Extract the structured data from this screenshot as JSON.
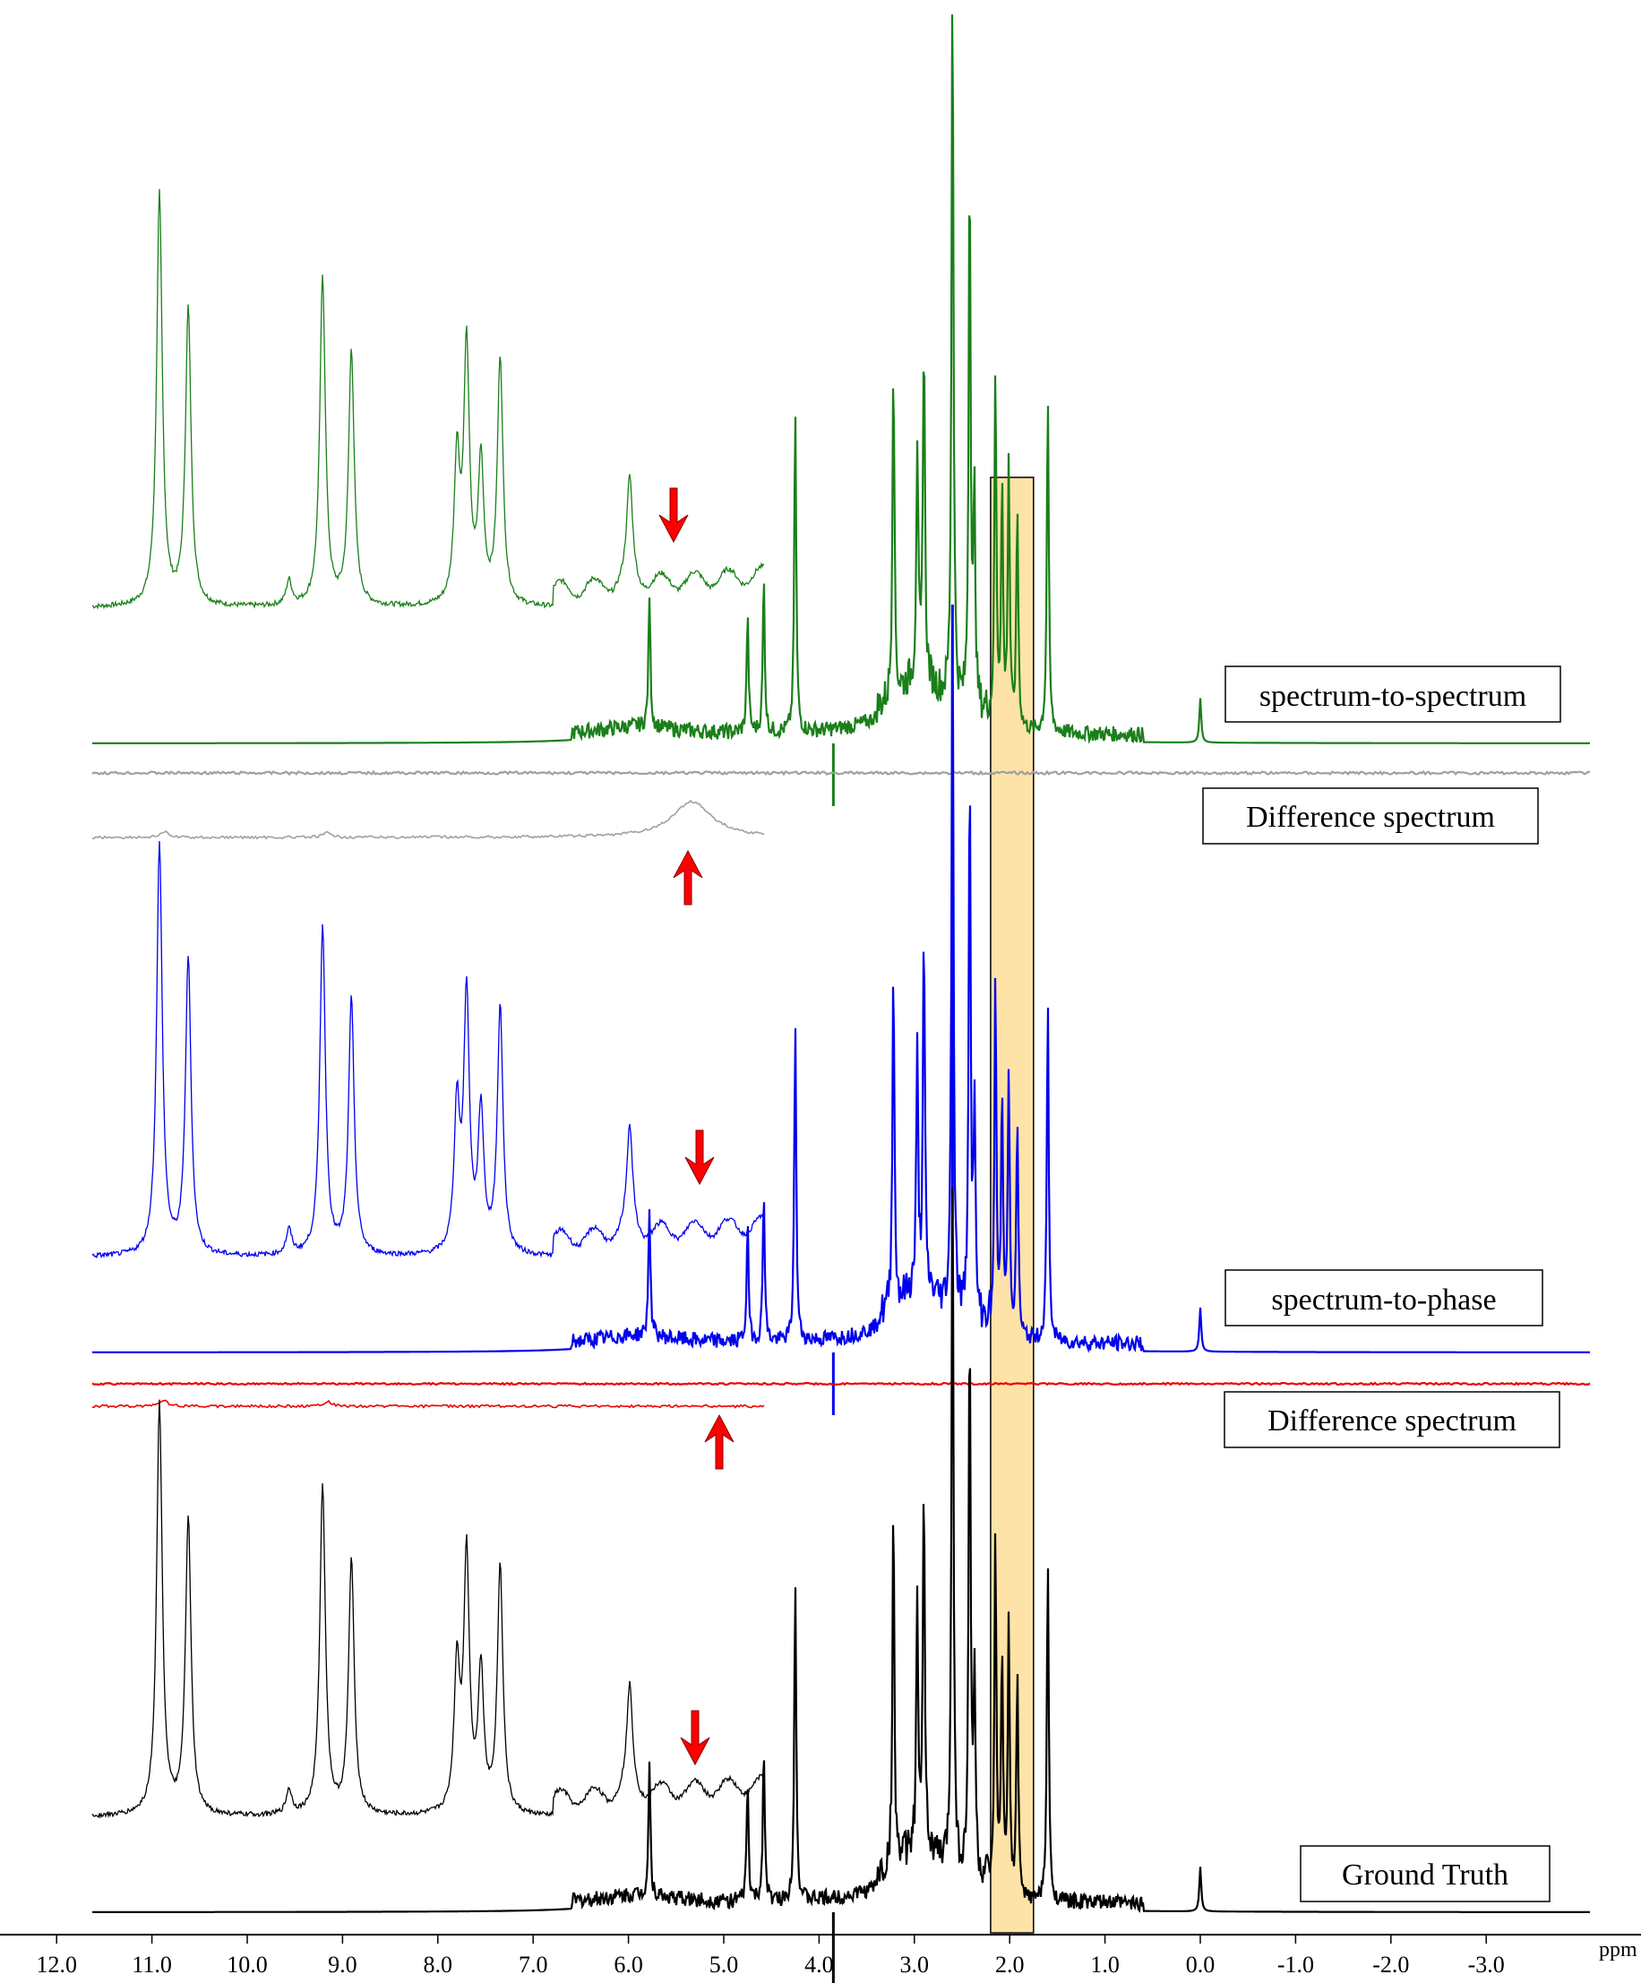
{
  "chart_data": {
    "type": "line",
    "title": "",
    "xlabel": "ppm",
    "ylabel": "",
    "x_reversed": true,
    "xlim": [
      12.5,
      -4.1
    ],
    "grid": false,
    "x_ticks": [
      "12.0",
      "11.0",
      "10.0",
      "9.0",
      "8.0",
      "7.0",
      "6.0",
      "5.0",
      "4.0",
      "3.0",
      "2.0",
      "1.0",
      "0.0",
      "-1.0",
      "-2.0",
      "-3.0"
    ],
    "highlight_region": {
      "from": 2.2,
      "to": 1.75,
      "color": "#fde3a7"
    },
    "arrow_color": "#ff0000",
    "series": [
      {
        "name": "spectrum-to-spectrum",
        "color": "#1a7f1a"
      },
      {
        "name": "Difference spectrum",
        "color": "#a0a0a0"
      },
      {
        "name": "spectrum-to-phase",
        "color": "#0000ee"
      },
      {
        "name": "Difference spectrum",
        "color": "#ee0000"
      },
      {
        "name": "Ground Truth",
        "color": "#000000"
      }
    ],
    "peaks_ppm": [
      {
        "ppm": 4.25,
        "height": 0.44
      },
      {
        "ppm": 3.22,
        "height": 0.48
      },
      {
        "ppm": 2.97,
        "height": 0.32
      },
      {
        "ppm": 2.9,
        "height": 0.48
      },
      {
        "ppm": 2.6,
        "height": 1.0
      },
      {
        "ppm": 2.42,
        "height": 0.76
      },
      {
        "ppm": 2.37,
        "height": 0.28
      },
      {
        "ppm": 2.15,
        "height": 0.48
      },
      {
        "ppm": 2.08,
        "height": 0.32
      },
      {
        "ppm": 2.01,
        "height": 0.36
      },
      {
        "ppm": 1.92,
        "height": 0.3
      },
      {
        "ppm": 1.6,
        "height": 0.46
      },
      {
        "ppm": 4.75,
        "height": 0.16
      },
      {
        "ppm": 4.58,
        "height": 0.21
      },
      {
        "ppm": 5.78,
        "height": 0.18
      },
      {
        "ppm": 0.0,
        "height": 0.06
      }
    ],
    "inset_peaks": [
      {
        "pos": 10.9,
        "height": 1.0
      },
      {
        "pos": 10.6,
        "height": 0.72
      },
      {
        "pos": 9.2,
        "height": 0.8
      },
      {
        "pos": 8.9,
        "height": 0.62
      },
      {
        "pos": 7.8,
        "height": 0.35
      },
      {
        "pos": 7.7,
        "height": 0.62
      },
      {
        "pos": 7.55,
        "height": 0.34
      },
      {
        "pos": 7.35,
        "height": 0.6
      },
      {
        "pos": 9.55,
        "height": 0.06
      },
      {
        "pos": 6.0,
        "height": 0.25
      }
    ],
    "labels": [
      "spectrum-to-spectrum",
      "Difference spectrum",
      "spectrum-to-phase",
      "Difference spectrum",
      "Ground Truth"
    ]
  }
}
